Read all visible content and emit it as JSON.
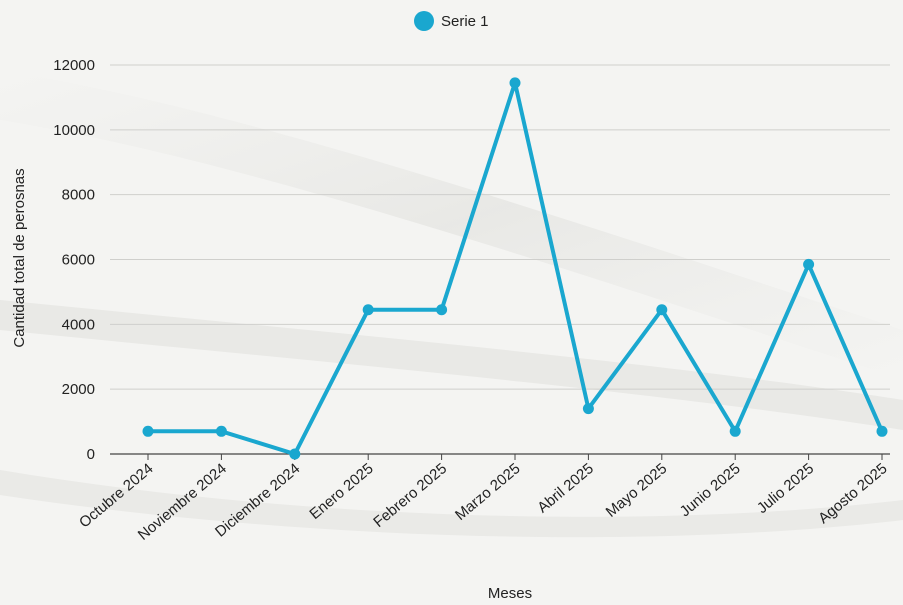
{
  "chart_data": {
    "type": "line",
    "xlabel": "Meses",
    "ylabel": "Cantidad total de perosnas",
    "ylim": [
      0,
      12000
    ],
    "yticks": [
      0,
      2000,
      4000,
      6000,
      8000,
      10000,
      12000
    ],
    "grid": true,
    "legend_position": "top-center",
    "categories": [
      "Octubre 2024",
      "Noviembre 2024",
      "Diciembre 2024",
      "Enero 2025",
      "Febrero 2025",
      "Marzo 2025",
      "Abril 2025",
      "Mayo 2025",
      "Junio 2025",
      "Julio 2025",
      "Agosto 2025"
    ],
    "series": [
      {
        "name": "Serie 1",
        "color": "#1aa7cf",
        "values": [
          700,
          700,
          0,
          4450,
          4450,
          11450,
          1400,
          4450,
          700,
          5850,
          700
        ]
      }
    ]
  }
}
